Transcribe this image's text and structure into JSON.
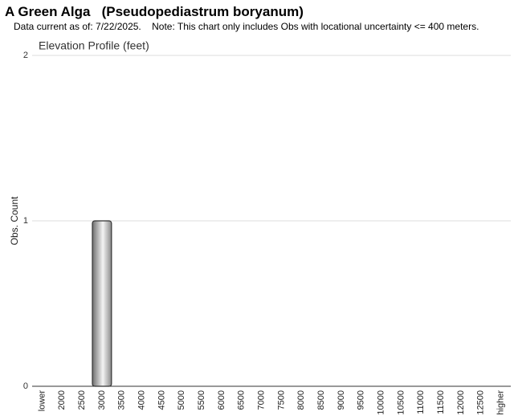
{
  "header": {
    "title": "A Green Alga   (Pseudopediastrum boryanum)",
    "subtitle": "Data current as of: 7/22/2025.    Note: This chart only includes Obs with locational uncertainty <= 400 meters."
  },
  "chart_data": {
    "type": "bar",
    "title": "Elevation Profile (feet)",
    "y_label": "Obs. Count",
    "categories": [
      "lower",
      "2000",
      "2500",
      "3000",
      "3500",
      "4000",
      "4500",
      "5000",
      "5500",
      "6000",
      "6500",
      "7000",
      "7500",
      "8000",
      "8500",
      "9000",
      "9500",
      "10000",
      "10500",
      "11000",
      "11500",
      "12000",
      "12500",
      "higher"
    ],
    "values": [
      0,
      0,
      0,
      1,
      0,
      0,
      0,
      0,
      0,
      0,
      0,
      0,
      0,
      0,
      0,
      0,
      0,
      0,
      0,
      0,
      0,
      0,
      0,
      0
    ],
    "ylim": [
      0,
      2
    ],
    "yticks": [
      0,
      1,
      2
    ],
    "grid": true,
    "color": "#a0a0a0"
  }
}
